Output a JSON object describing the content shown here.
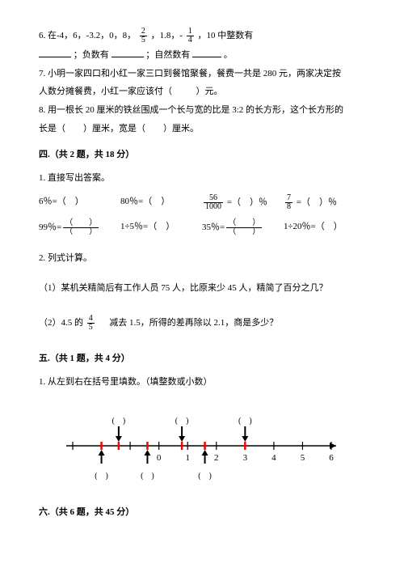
{
  "q6": {
    "prefix": "6. 在-4，6，-3.2，0，8，",
    "frac1_num": "2",
    "frac1_den": "5",
    "mid": "，1.8，-",
    "frac2_num": "1",
    "frac2_den": "4",
    "suffix": "，10 中整数有",
    "line2a": "；负数有",
    "line2b": "；自然数有",
    "line2c": "。"
  },
  "q7": {
    "l1": "7. 小明一家四口和小红一家三口到餐馆聚餐，餐费一共是 280 元，两家决定按",
    "l2a": "人数分摊餐费，小红一家应该付（",
    "l2b": "）元。"
  },
  "q8": {
    "l1": "8. 用一根长 20 厘米的铁丝围成一个长与宽的比是 3:2 的长方形，这个长方形的",
    "l2": "长是（　　）厘米，宽是（　　）厘米。"
  },
  "sec4": "四.（共 2 题，共 18 分）",
  "s4q1": "1. 直接写出答案。",
  "r1a": "6％=（　）",
  "r1b": "80％=（　）",
  "r1c_num": "56",
  "r1c_den": "1000",
  "r1c_eq": " =（　）％",
  "r1d_num": "7",
  "r1d_den": "8",
  "r1d_eq": " =（　）％",
  "r2a": "99％=",
  "r2a_num": "（　　）",
  "r2a_den": "（　　）",
  "r2b": "1÷5％=（　）",
  "r2c": "35％=",
  "r2c_num": "（　　）",
  "r2c_den": "（　　）",
  "r2d": "1÷20％=（　）",
  "s4q2": "2. 列式计算。",
  "s4q2_1": "（1）某机关精简后有工作人员 75 人，比原来少 45 人，精简了百分之几？",
  "s4q2_2a": "（2）4.5 的",
  "s4q2_2_num": "4",
  "s4q2_2_den": "5",
  "s4q2_2b": "减去 1.5，所得的差再除以 2.1，商是多少？",
  "sec5": "五.（共 1 题，共 4 分）",
  "s5q1": "1. 从左到右在括号里填数。（填整数或小数）",
  "numline": {
    "min": -3,
    "max": 6,
    "arrows_top": [
      -1.4,
      0.8,
      3
    ],
    "arrows_bot": [
      -2,
      -0.4,
      1.6
    ],
    "red_ticks": [
      -2,
      -1.4,
      -0.4,
      0.8,
      1.6,
      3
    ],
    "labels": [
      {
        "x": 0,
        "t": "0"
      },
      {
        "x": 1,
        "t": "1"
      },
      {
        "x": 2,
        "t": "2"
      },
      {
        "x": 3,
        "t": "3"
      },
      {
        "x": 4,
        "t": "4"
      },
      {
        "x": 5,
        "t": "5"
      },
      {
        "x": 6,
        "t": "6"
      }
    ],
    "paren_top": [
      -1.4,
      0.8,
      3
    ],
    "paren_bot": [
      -2,
      -0.4,
      1.6
    ]
  },
  "sec6": "六.（共 6 题，共 45 分）"
}
